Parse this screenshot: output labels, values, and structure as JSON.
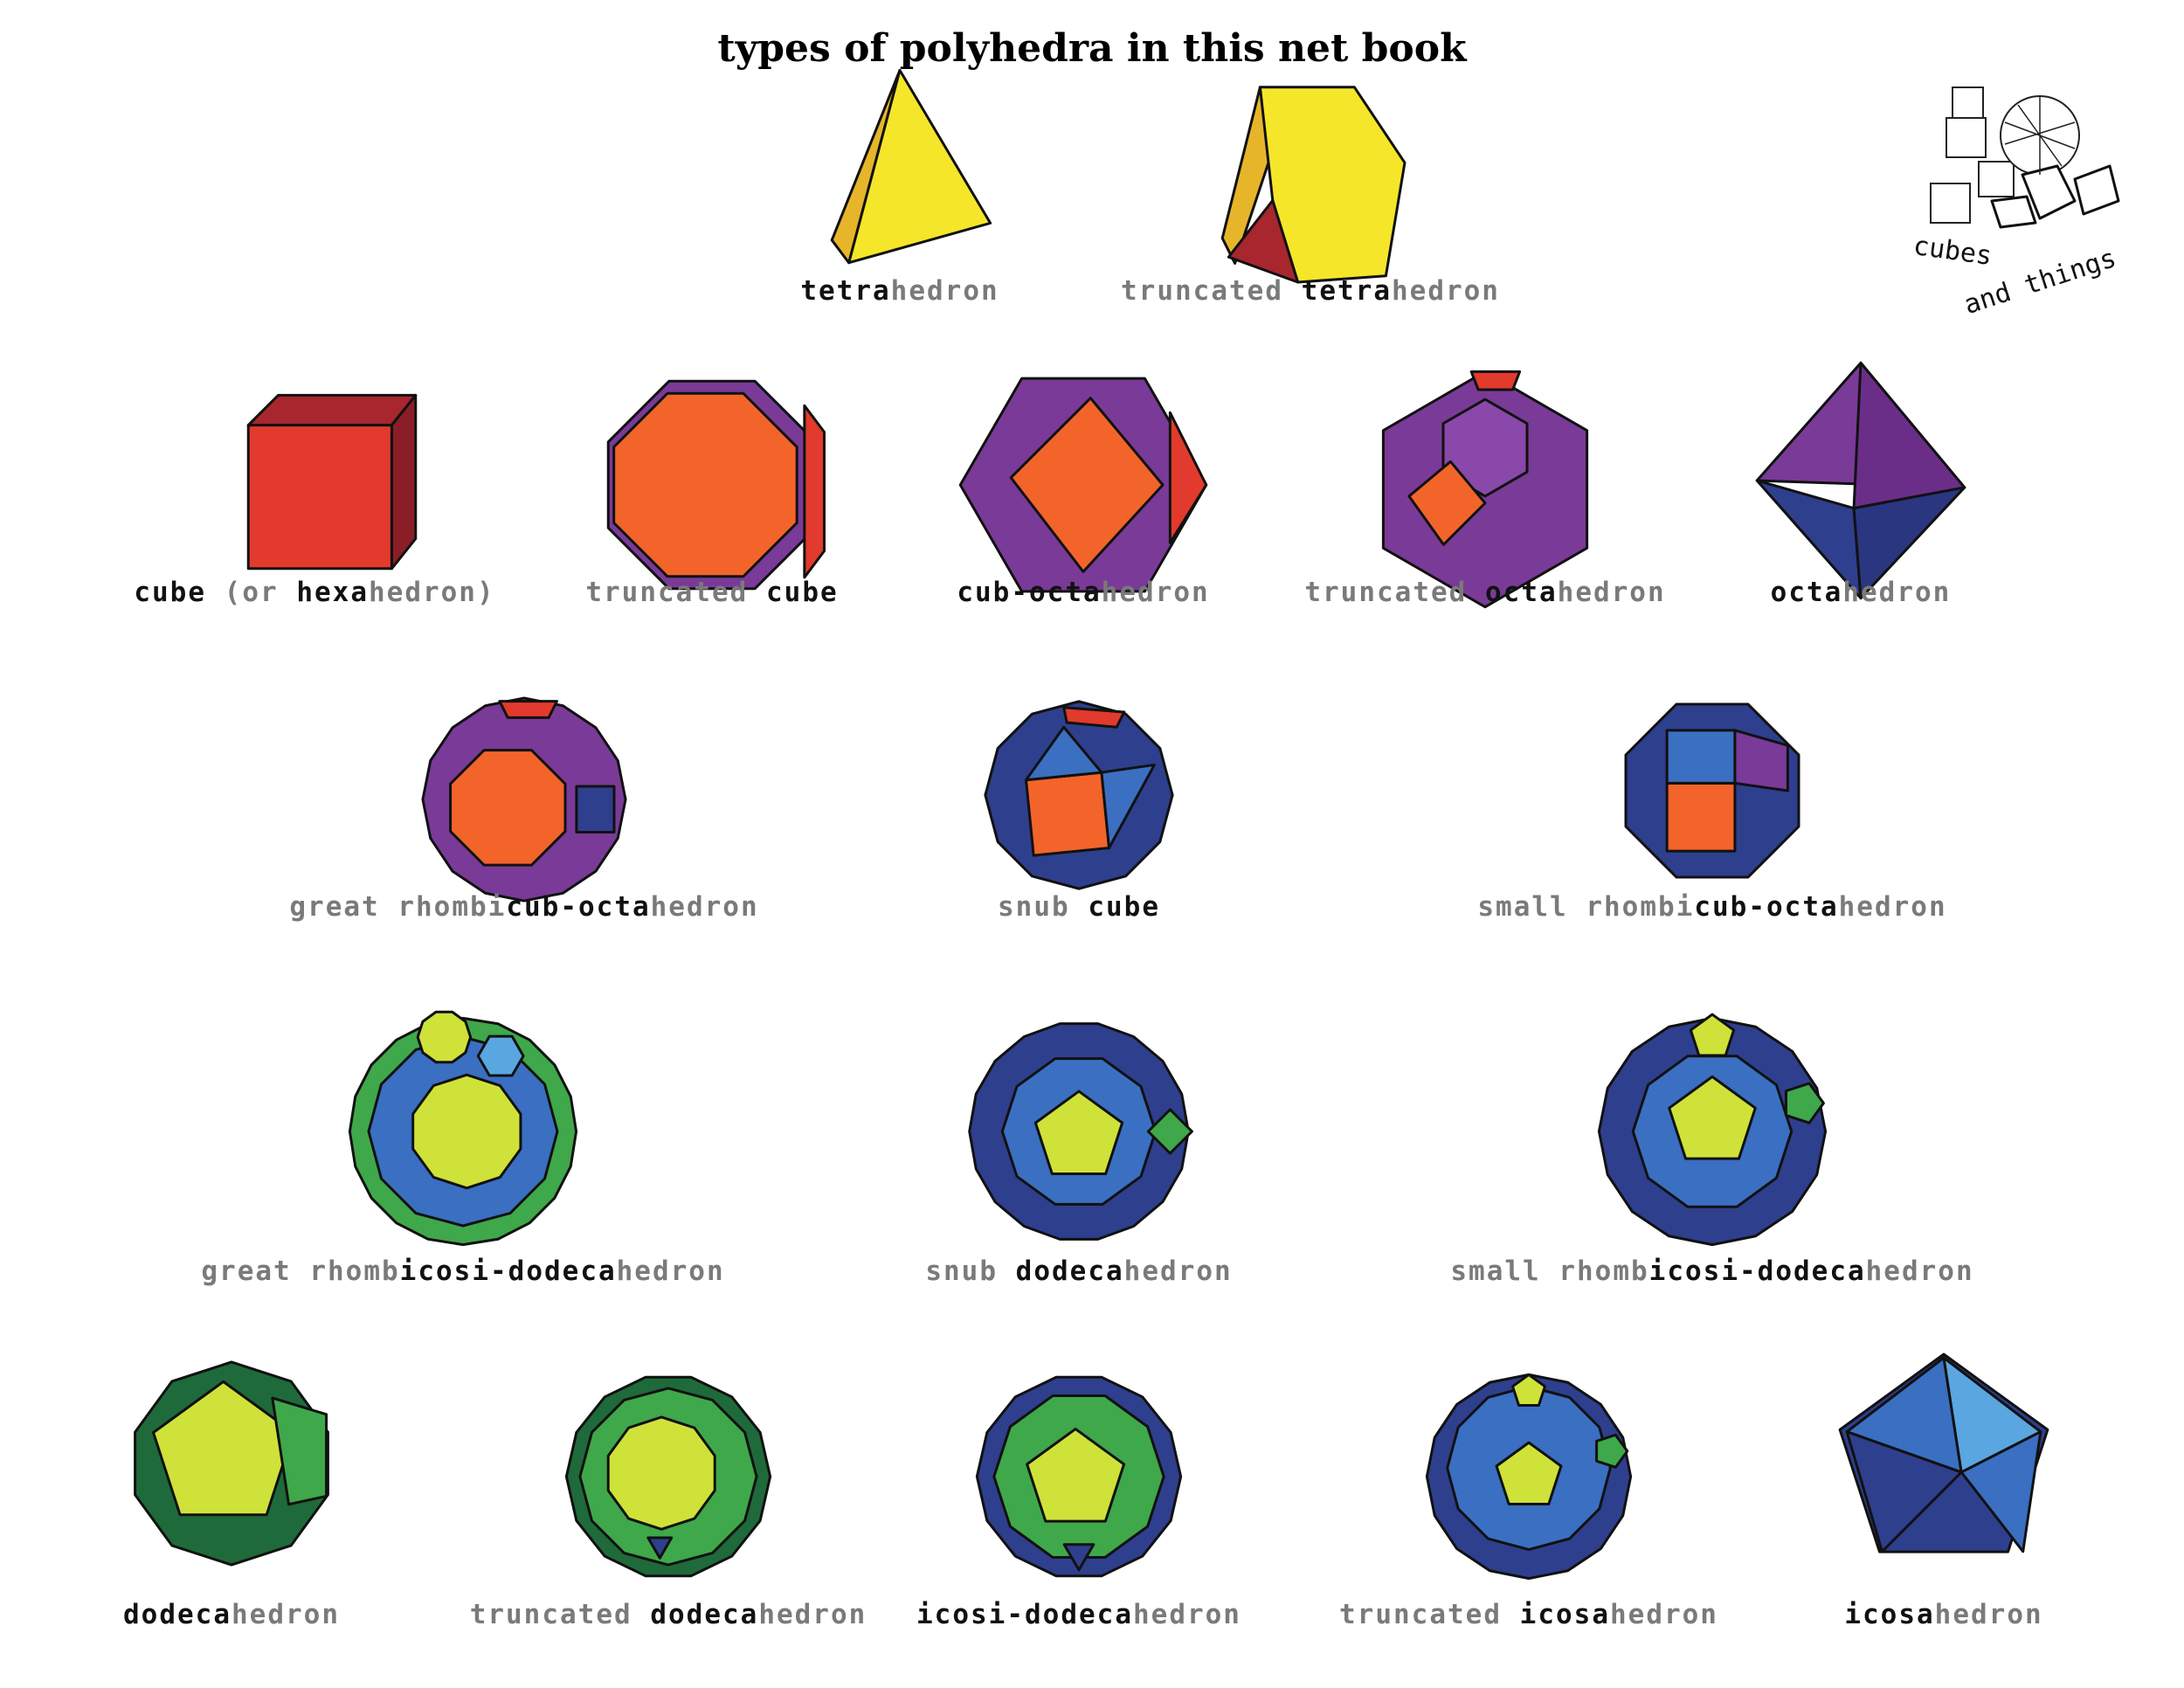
{
  "title": "types of polyhedra in this net book",
  "logo": {
    "line1": "cubes",
    "line2": "and things"
  },
  "palette": {
    "yellow": "#f5e62a",
    "gold": "#e6b52a",
    "maroon": "#a8262e",
    "red": "#e23a2c",
    "orange": "#f2642a",
    "purple": "#7a3a98",
    "navy": "#2e3f8e",
    "blue": "#3a6fc2",
    "lightblue": "#5aa6e0",
    "lime": "#cfe23a",
    "green": "#3fa84a",
    "darkgreen": "#1f6a3a"
  },
  "polyhedra": [
    {
      "parts": [
        {
          "text": "tetra",
          "tone": "dark"
        },
        {
          "text": "hedron",
          "tone": "light"
        }
      ]
    },
    {
      "parts": [
        {
          "text": "truncated ",
          "tone": "light"
        },
        {
          "text": "tetra",
          "tone": "dark"
        },
        {
          "text": "hedron",
          "tone": "light"
        }
      ]
    },
    {
      "parts": [
        {
          "text": "cube",
          "tone": "dark"
        },
        {
          "text": " (or ",
          "tone": "light"
        },
        {
          "text": "hexa",
          "tone": "dark"
        },
        {
          "text": "hedron)",
          "tone": "light"
        }
      ]
    },
    {
      "parts": [
        {
          "text": "truncated ",
          "tone": "light"
        },
        {
          "text": "cube",
          "tone": "dark"
        }
      ]
    },
    {
      "parts": [
        {
          "text": "cub-octa",
          "tone": "dark"
        },
        {
          "text": "hedron",
          "tone": "light"
        }
      ]
    },
    {
      "parts": [
        {
          "text": "truncated ",
          "tone": "light"
        },
        {
          "text": "octa",
          "tone": "dark"
        },
        {
          "text": "hedron",
          "tone": "light"
        }
      ]
    },
    {
      "parts": [
        {
          "text": "octa",
          "tone": "dark"
        },
        {
          "text": "hedron",
          "tone": "light"
        }
      ]
    },
    {
      "parts": [
        {
          "text": "great rhombi",
          "tone": "light"
        },
        {
          "text": "cub-octa",
          "tone": "dark"
        },
        {
          "text": "hedron",
          "tone": "light"
        }
      ]
    },
    {
      "parts": [
        {
          "text": "snub ",
          "tone": "light"
        },
        {
          "text": "cube",
          "tone": "dark"
        }
      ]
    },
    {
      "parts": [
        {
          "text": "small rhombi",
          "tone": "light"
        },
        {
          "text": "cub-octa",
          "tone": "dark"
        },
        {
          "text": "hedron",
          "tone": "light"
        }
      ]
    },
    {
      "parts": [
        {
          "text": "great rhomb",
          "tone": "light"
        },
        {
          "text": "icosi-dodeca",
          "tone": "dark"
        },
        {
          "text": "hedron",
          "tone": "light"
        }
      ]
    },
    {
      "parts": [
        {
          "text": "snub ",
          "tone": "light"
        },
        {
          "text": "dodeca",
          "tone": "dark"
        },
        {
          "text": "hedron",
          "tone": "light"
        }
      ]
    },
    {
      "parts": [
        {
          "text": "small rhomb",
          "tone": "light"
        },
        {
          "text": "icosi-dodeca",
          "tone": "dark"
        },
        {
          "text": "hedron",
          "tone": "light"
        }
      ]
    },
    {
      "parts": [
        {
          "text": "dodeca",
          "tone": "dark"
        },
        {
          "text": "hedron",
          "tone": "light"
        }
      ]
    },
    {
      "parts": [
        {
          "text": "truncated ",
          "tone": "light"
        },
        {
          "text": "dodeca",
          "tone": "dark"
        },
        {
          "text": "hedron",
          "tone": "light"
        }
      ]
    },
    {
      "parts": [
        {
          "text": "icosi-dodeca",
          "tone": "dark"
        },
        {
          "text": "hedron",
          "tone": "light"
        }
      ]
    },
    {
      "parts": [
        {
          "text": "truncated ",
          "tone": "light"
        },
        {
          "text": "icosa",
          "tone": "dark"
        },
        {
          "text": "hedron",
          "tone": "light"
        }
      ]
    },
    {
      "parts": [
        {
          "text": "icosa",
          "tone": "dark"
        },
        {
          "text": "hedron",
          "tone": "light"
        }
      ]
    }
  ]
}
